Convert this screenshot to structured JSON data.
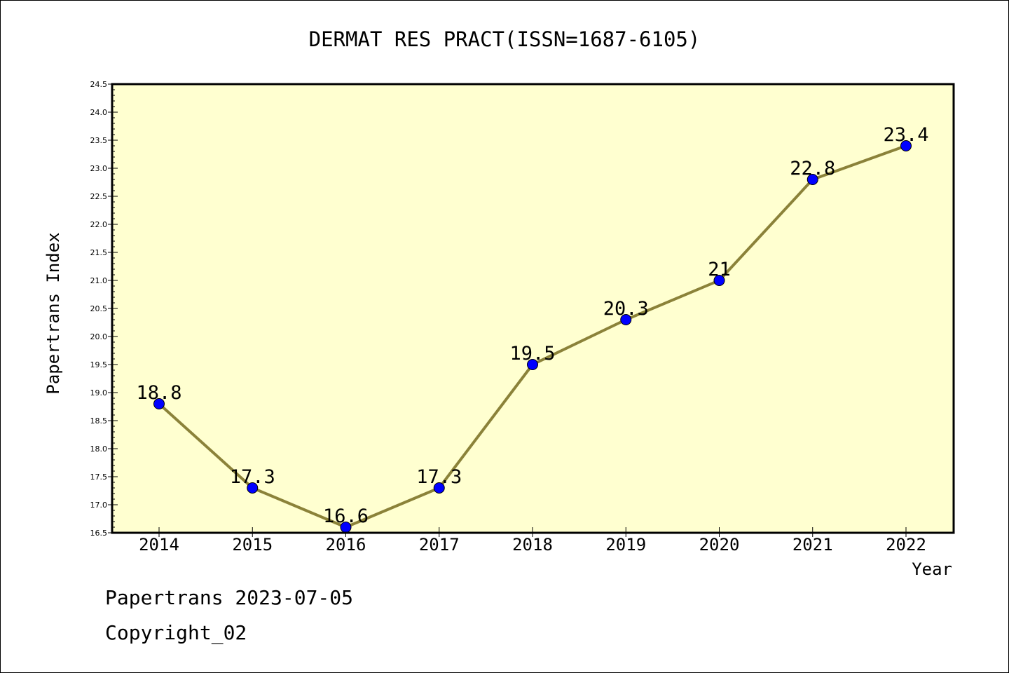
{
  "chart_data": {
    "type": "line",
    "title": "DERMAT RES PRACT(ISSN=1687-6105)",
    "xlabel": "Year",
    "ylabel": "Papertrans Index",
    "categories": [
      "2014",
      "2015",
      "2016",
      "2017",
      "2018",
      "2019",
      "2020",
      "2021",
      "2022"
    ],
    "series": [
      {
        "values": [
          18.8,
          17.3,
          16.6,
          17.3,
          19.5,
          20.3,
          21,
          22.8,
          23.4
        ],
        "labels": [
          "18.8",
          "17.3",
          "16.6",
          "17.3",
          "19.5",
          "20.3",
          "21",
          "22.8",
          "23.4"
        ]
      }
    ],
    "ylim": [
      16.5,
      24.5
    ],
    "yticks": [
      "16.5",
      "17.0",
      "17.5",
      "18.0",
      "18.5",
      "19.0",
      "19.5",
      "20.0",
      "20.5",
      "21.0",
      "21.5",
      "22.0",
      "22.5",
      "23.0",
      "23.5",
      "24.0",
      "24.5"
    ],
    "grid": false,
    "colors": {
      "plot_background": "#ffffd0",
      "line": "#8b8239",
      "marker": "#0000ff"
    }
  },
  "footer": {
    "line1": "Papertrans 2023-07-05",
    "line2": "Copyright_02"
  }
}
